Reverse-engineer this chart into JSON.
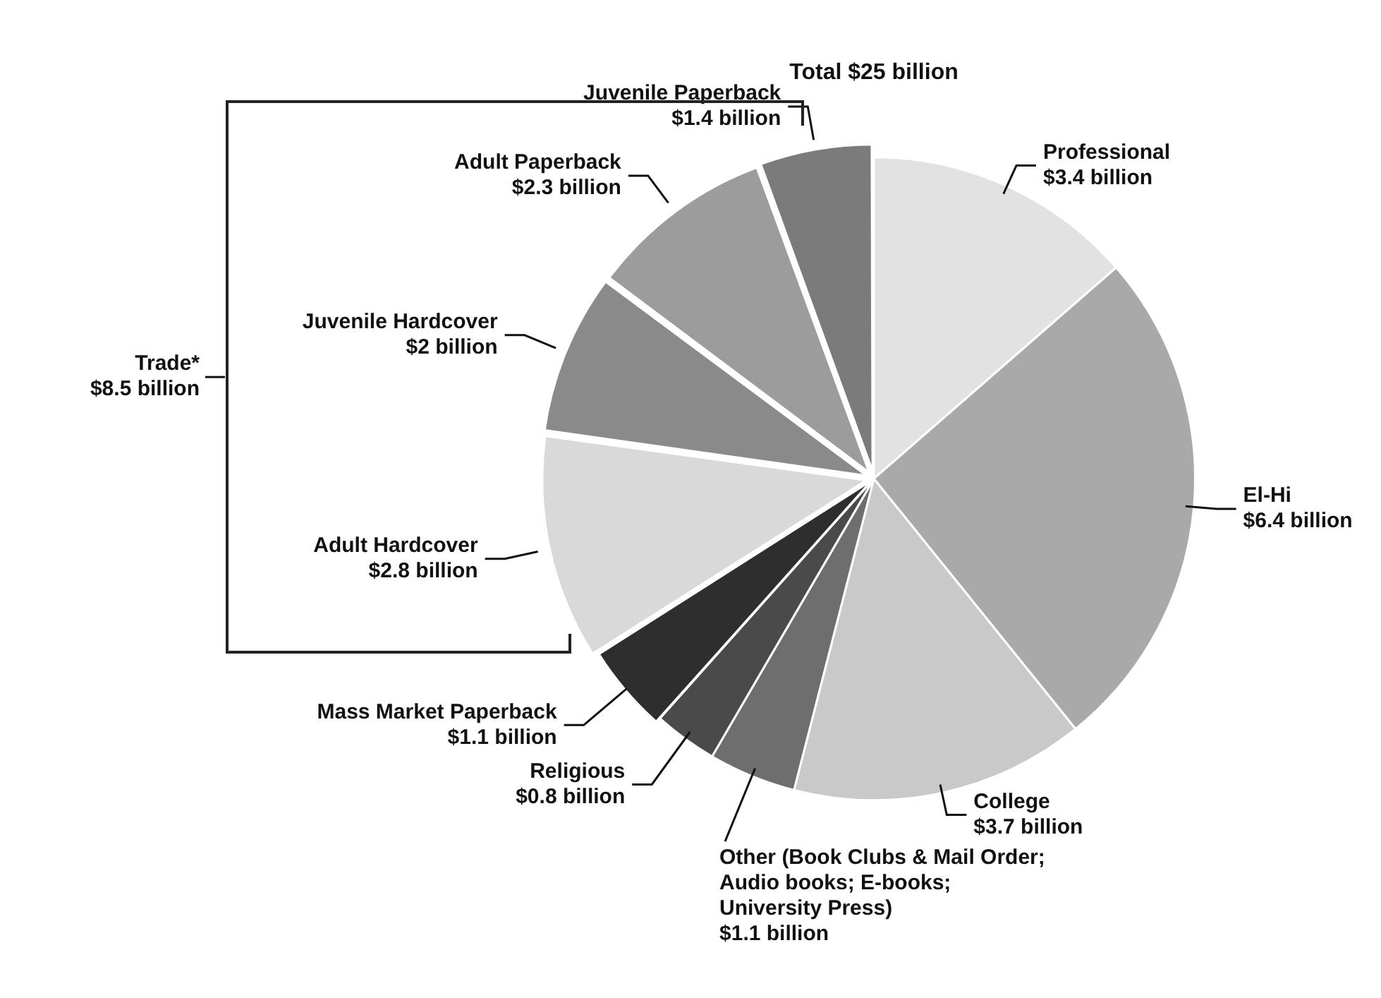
{
  "chart_data": {
    "type": "pie",
    "title": "Total $25 billion",
    "categories": [
      "Professional",
      "El-Hi",
      "College",
      "Other (Book Clubs & Mail Order; Audio books; E-books; University Press)",
      "Religious",
      "Mass Market Paperback",
      "Adult Hardcover",
      "Juvenile Hardcover",
      "Adult Paperback",
      "Juvenile Paperback"
    ],
    "values": [
      3.4,
      6.4,
      3.7,
      1.1,
      0.8,
      1.1,
      2.8,
      2,
      2.3,
      1.4
    ],
    "value_labels": [
      "$3.4 billion",
      "$6.4 billion",
      "$3.7 billion",
      "$1.1 billion",
      "$0.8 billion",
      "$1.1 billion",
      "$2.8 billion",
      "$2 billion",
      "$2.3 billion",
      "$1.4 billion"
    ],
    "colors": [
      "#e2e2e2",
      "#a9a9a9",
      "#c9c9c9",
      "#6e6e6e",
      "#4a4a4a",
      "#2e2e2e",
      "#d9d9d9",
      "#8a8a8a",
      "#9c9c9c",
      "#7b7b7b"
    ],
    "annotations": [
      "Trade*\n$8.5 billion"
    ],
    "legend": false
  }
}
